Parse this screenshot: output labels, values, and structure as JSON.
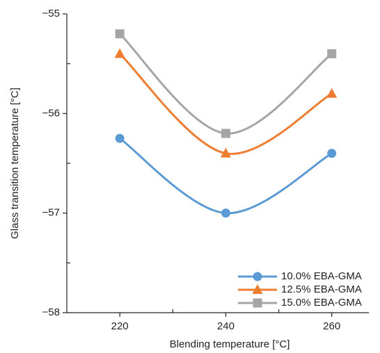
{
  "chart_data": {
    "type": "line",
    "x_label": "Blending temperature [°C]",
    "y_label": "Glass transition temperature [°C]",
    "x": [
      220,
      240,
      260
    ],
    "series": [
      {
        "name": "10.0% EBA-GMA",
        "color": "#5b9bd5",
        "marker": "circle",
        "values": [
          -56.25,
          -57.0,
          -56.4
        ]
      },
      {
        "name": "12.5% EBA-GMA",
        "color": "#ed7d31",
        "marker": "triangle",
        "values": [
          -55.4,
          -56.4,
          -55.8
        ]
      },
      {
        "name": "15.0% EBA-GMA",
        "color": "#a5a5a5",
        "marker": "square",
        "values": [
          -55.2,
          -56.2,
          -55.4
        ]
      }
    ],
    "xlim": [
      210,
      267
    ],
    "xticks": [
      220,
      240,
      260
    ],
    "xminor_ticks": [
      230,
      250
    ],
    "ylim": [
      -58,
      -55
    ],
    "yticks": [
      {
        "value": -58,
        "label": "−58"
      },
      {
        "value": -57,
        "label": "−57"
      },
      {
        "value": -56,
        "label": "−56"
      },
      {
        "value": -55,
        "label": "−55"
      }
    ],
    "yminor_ticks": [
      -57.5,
      -56.5,
      -55.5
    ],
    "smooth": true,
    "legend": "lower right"
  }
}
